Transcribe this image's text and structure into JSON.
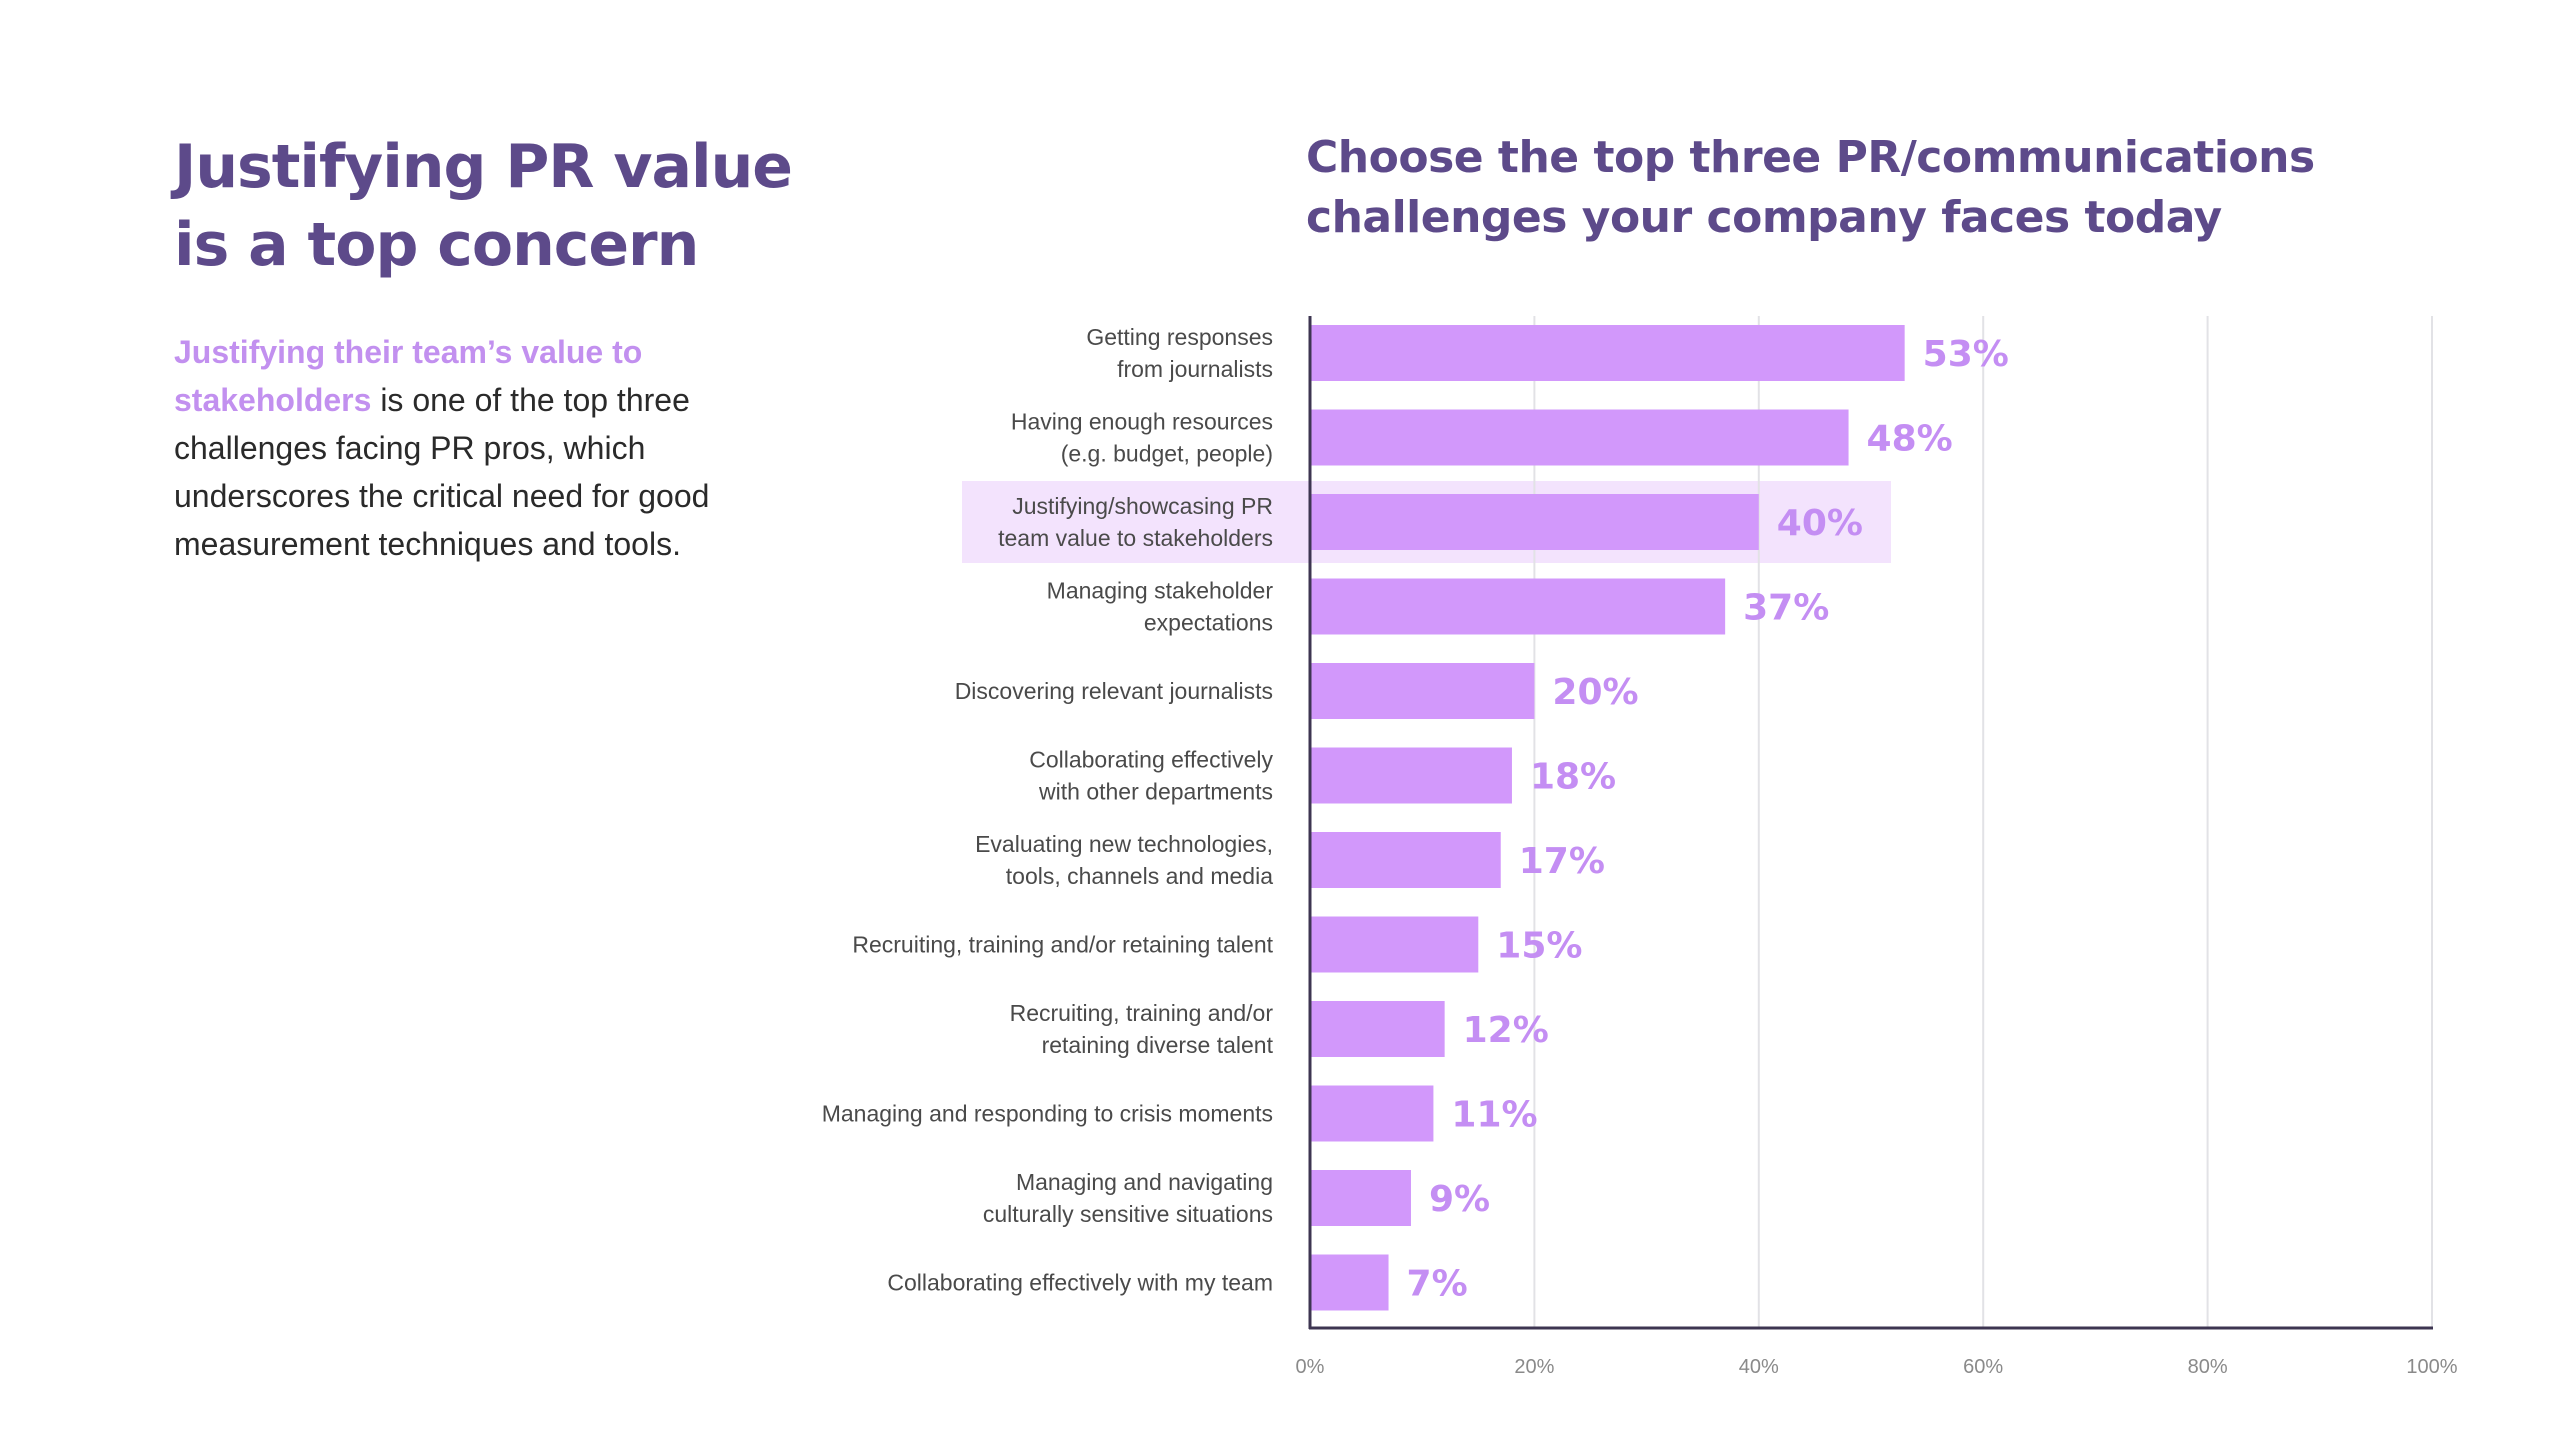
{
  "left": {
    "title_line1": "Justifying PR value",
    "title_line2": "is a top concern",
    "body_highlight": "Justifying their team’s value to stakeholders",
    "body_rest": " is one of the top three challenges facing PR pros, which underscores the critical need for good measurement techniques and tools."
  },
  "colors": {
    "title": "#5d4a8a",
    "bar": "#d298fb",
    "value_label": "#c48ef3",
    "highlight_band": "#f3e3fd",
    "axis": "#3d3551",
    "grid": "#e2e2e6"
  },
  "chart_data": {
    "type": "bar",
    "orientation": "horizontal",
    "title_line1": "Choose the top three PR/communications",
    "title_line2": "challenges your company faces today",
    "categories": [
      [
        "Getting responses",
        "from journalists"
      ],
      [
        "Having enough resources",
        "(e.g. budget, people)"
      ],
      [
        "Justifying/showcasing PR",
        "team value to stakeholders"
      ],
      [
        "Managing stakeholder",
        "expectations"
      ],
      [
        "Discovering relevant journalists"
      ],
      [
        "Collaborating effectively",
        "with other departments"
      ],
      [
        "Evaluating new technologies,",
        "tools, channels and media"
      ],
      [
        "Recruiting, training and/or retaining talent"
      ],
      [
        "Recruiting, training and/or",
        "retaining diverse talent"
      ],
      [
        "Managing and responding to crisis moments"
      ],
      [
        "Managing and navigating",
        "culturally sensitive situations"
      ],
      [
        "Collaborating effectively with my team"
      ]
    ],
    "values": [
      53,
      48,
      40,
      37,
      20,
      18,
      17,
      15,
      12,
      11,
      9,
      7
    ],
    "value_labels": [
      "53%",
      "48%",
      "40%",
      "37%",
      "20%",
      "18%",
      "17%",
      "15%",
      "12%",
      "11%",
      "9%",
      "7%"
    ],
    "highlighted_index": 2,
    "xlim": [
      0,
      100
    ],
    "xticks": [
      0,
      20,
      40,
      60,
      80,
      100
    ],
    "xtick_labels": [
      "0%",
      "20%",
      "40%",
      "60%",
      "80%",
      "100%"
    ],
    "grid": true,
    "legend": "none"
  }
}
